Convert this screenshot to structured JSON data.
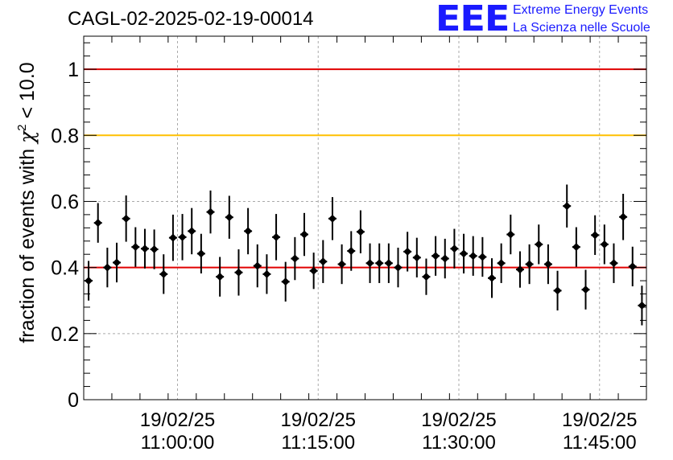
{
  "title": "CAGL-02-2025-02-19-00014",
  "logo": {
    "mark": "EEE",
    "line1": "Extreme Energy Events",
    "line2": "La Scienza nelle Scuole",
    "color": "#1a1aff"
  },
  "chart_data": {
    "type": "scatter",
    "title": "CAGL-02-2025-02-19-00014",
    "ylabel_prefix": "fraction of events with ",
    "ylabel_symbol": "χ",
    "ylabel_sup": "2",
    "ylabel_suffix": " < 10.0",
    "xlabel": "",
    "ylim": [
      0,
      1.1
    ],
    "xlim_minutes": [
      -10,
      50
    ],
    "x_ticks": [
      {
        "minute": 0,
        "date": "19/02/25",
        "time": "11:00:00"
      },
      {
        "minute": 15,
        "date": "19/02/25",
        "time": "11:15:00"
      },
      {
        "minute": 30,
        "date": "19/02/25",
        "time": "11:30:00"
      },
      {
        "minute": 45,
        "date": "19/02/25",
        "time": "11:45:00"
      }
    ],
    "y_ticks": [
      {
        "value": 0,
        "label": "0"
      },
      {
        "value": 0.2,
        "label": "0.2"
      },
      {
        "value": 0.4,
        "label": "0.4"
      },
      {
        "value": 0.6,
        "label": "0.6"
      },
      {
        "value": 0.8,
        "label": "0.8"
      },
      {
        "value": 1,
        "label": "1"
      }
    ],
    "grid": true,
    "reference_lines": [
      {
        "value": 1.0,
        "color": "#e00000"
      },
      {
        "value": 0.8,
        "color": "#ffc000"
      },
      {
        "value": 0.4,
        "color": "#e00000"
      }
    ],
    "series": [
      {
        "color": "#000000",
        "x": [
          -9.48,
          -8.48,
          -7.48,
          -6.48,
          -5.48,
          -4.48,
          -3.48,
          -2.48,
          -1.48,
          -0.48,
          0.52,
          1.52,
          2.52,
          3.52,
          4.52,
          5.52,
          6.52,
          7.52,
          8.52,
          9.52,
          10.52,
          11.52,
          12.52,
          13.52,
          14.52,
          15.52,
          16.52,
          17.52,
          18.52,
          19.52,
          20.52,
          21.52,
          22.52,
          23.52,
          24.52,
          25.52,
          26.52,
          27.52,
          28.52,
          29.52,
          30.52,
          31.52,
          32.52,
          33.52,
          34.52,
          35.52,
          36.52,
          37.52,
          38.52,
          39.52,
          40.52,
          41.52,
          42.52,
          43.52,
          44.52,
          45.52,
          46.52,
          47.52,
          48.52,
          49.52
        ],
        "y": [
          0.36,
          0.535,
          0.4,
          0.415,
          0.548,
          0.462,
          0.457,
          0.455,
          0.38,
          0.49,
          0.492,
          0.51,
          0.442,
          0.568,
          0.372,
          0.552,
          0.385,
          0.51,
          0.405,
          0.38,
          0.492,
          0.357,
          0.427,
          0.5,
          0.39,
          0.418,
          0.548,
          0.41,
          0.45,
          0.508,
          0.413,
          0.413,
          0.413,
          0.4,
          0.448,
          0.43,
          0.372,
          0.435,
          0.427,
          0.457,
          0.442,
          0.435,
          0.432,
          0.368,
          0.413,
          0.5,
          0.394,
          0.41,
          0.47,
          0.41,
          0.33,
          0.586,
          0.462,
          0.333,
          0.498,
          0.47,
          0.413,
          0.553,
          0.403,
          0.285
        ],
        "err": [
          0.06,
          0.06,
          0.06,
          0.06,
          0.07,
          0.06,
          0.06,
          0.06,
          0.06,
          0.07,
          0.07,
          0.07,
          0.06,
          0.065,
          0.06,
          0.065,
          0.07,
          0.07,
          0.065,
          0.06,
          0.07,
          0.06,
          0.065,
          0.065,
          0.055,
          0.065,
          0.065,
          0.06,
          0.06,
          0.065,
          0.06,
          0.06,
          0.06,
          0.06,
          0.06,
          0.06,
          0.055,
          0.06,
          0.06,
          0.06,
          0.06,
          0.06,
          0.06,
          0.06,
          0.06,
          0.06,
          0.055,
          0.06,
          0.06,
          0.06,
          0.06,
          0.065,
          0.06,
          0.06,
          0.06,
          0.06,
          0.06,
          0.07,
          0.06,
          0.06
        ]
      }
    ]
  }
}
